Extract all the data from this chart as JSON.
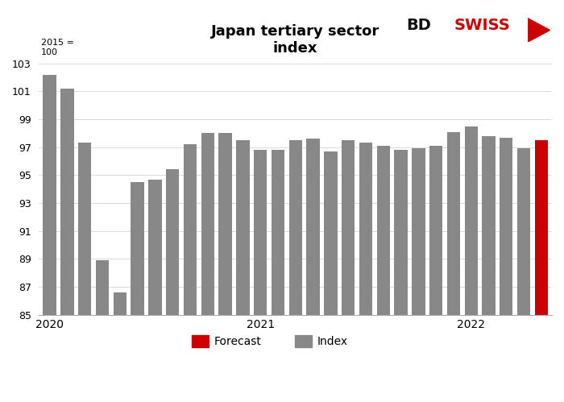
{
  "title": "Japan tertiary sector\nindex",
  "subtitle": "2015 =\n100",
  "values": [
    102.2,
    101.2,
    97.3,
    88.9,
    86.6,
    94.5,
    94.7,
    95.4,
    97.2,
    98.0,
    98.0,
    97.5,
    96.8,
    96.8,
    97.5,
    97.6,
    96.7,
    97.5,
    97.3,
    97.1,
    96.8,
    96.9,
    97.1,
    98.1,
    98.5,
    97.8,
    97.7,
    96.9,
    97.5
  ],
  "colors": [
    "#888888",
    "#888888",
    "#888888",
    "#888888",
    "#888888",
    "#888888",
    "#888888",
    "#888888",
    "#888888",
    "#888888",
    "#888888",
    "#888888",
    "#888888",
    "#888888",
    "#888888",
    "#888888",
    "#888888",
    "#888888",
    "#888888",
    "#888888",
    "#888888",
    "#888888",
    "#888888",
    "#888888",
    "#888888",
    "#888888",
    "#888888",
    "#888888",
    "#cc0000"
  ],
  "ylim": [
    85,
    103
  ],
  "yticks": [
    85,
    87,
    89,
    91,
    93,
    95,
    97,
    99,
    101,
    103
  ],
  "xtick_positions": [
    0,
    12,
    24
  ],
  "xtick_labels": [
    "2020",
    "2021",
    "2022"
  ],
  "bar_width": 0.75,
  "background_color": "#ffffff",
  "legend_forecast_color": "#cc0000",
  "legend_index_color": "#888888"
}
